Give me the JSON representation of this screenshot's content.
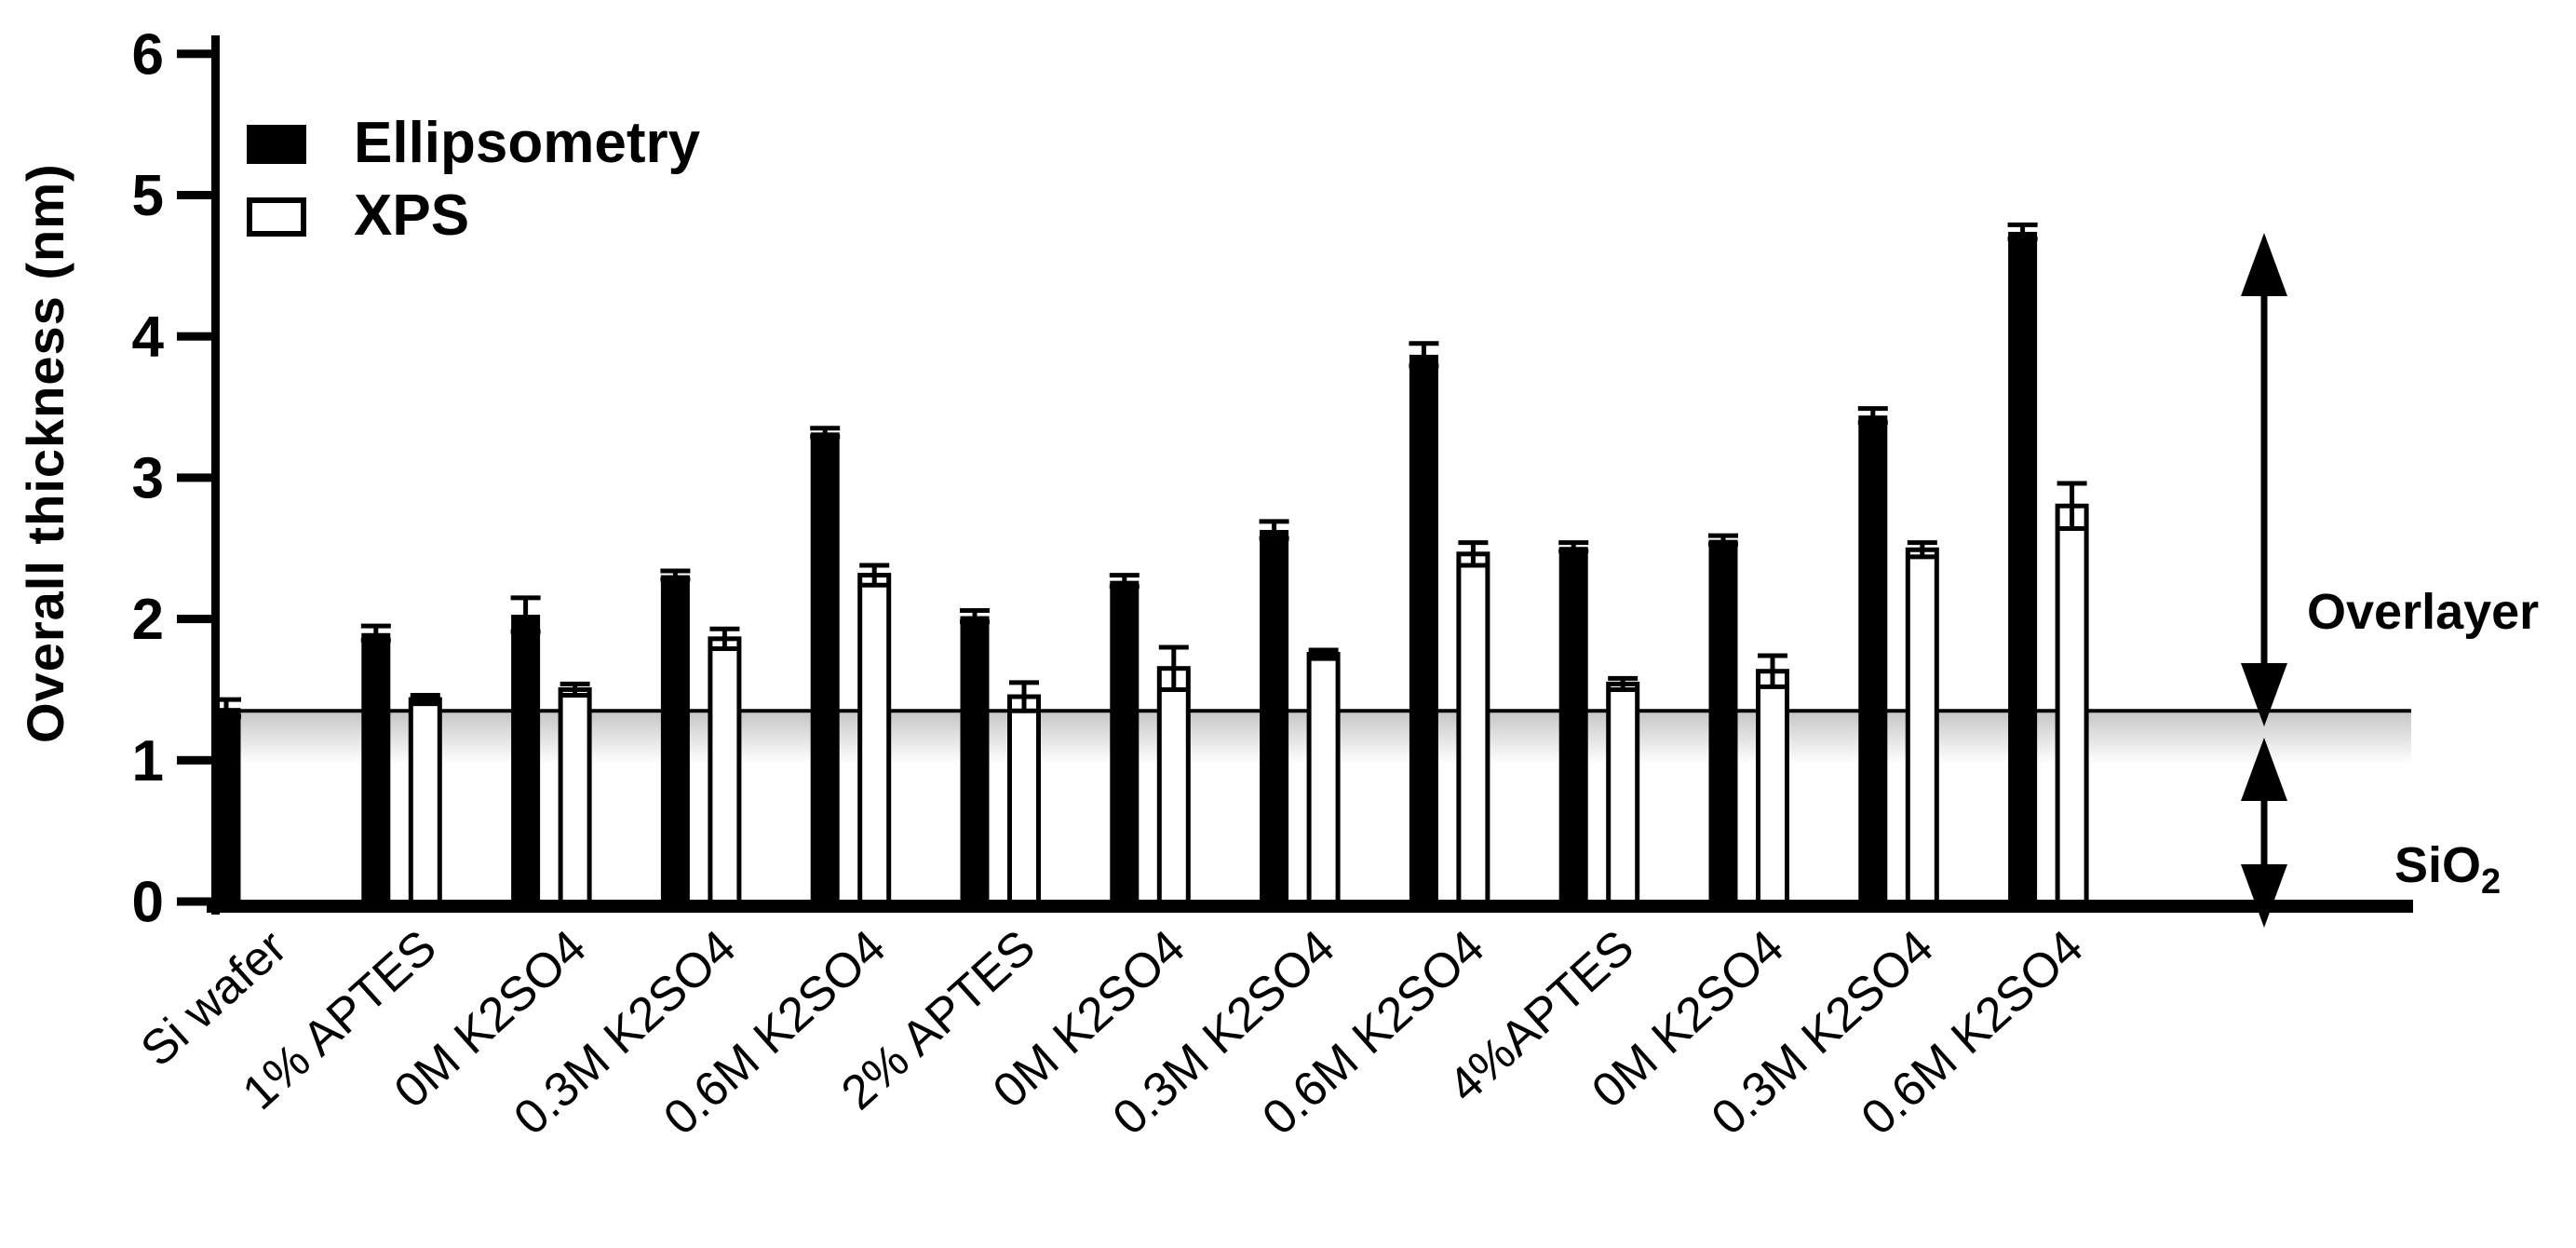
{
  "chart_data": {
    "type": "bar",
    "title": "",
    "ylabel": "Overall thickness (nm)",
    "xlabel": "",
    "ylim": [
      0,
      6
    ],
    "yticks": [
      "0",
      "1",
      "2",
      "3",
      "4",
      "5",
      "6"
    ],
    "grid": false,
    "legend_position": "top-left",
    "categories": [
      "Si wafer",
      "1% APTES",
      "0M K2SO4",
      "0.3M K2SO4",
      "0.6M K2SO4",
      "2% APTES",
      "0M K2SO4",
      "0.3M K2SO4",
      "0.6M K2SO4",
      "4%APTES",
      "0M K2SO4",
      "0.3M K2SO4",
      "0.6M K2SO4"
    ],
    "series": [
      {
        "name": "Ellipsometry",
        "fill": "#000000",
        "values": [
          1.37,
          1.9,
          2.03,
          2.31,
          3.32,
          2.02,
          2.27,
          2.63,
          3.87,
          2.51,
          2.56,
          3.44,
          4.74
        ],
        "errors": [
          0.06,
          0.05,
          0.12,
          0.03,
          0.03,
          0.04,
          0.04,
          0.06,
          0.08,
          0.03,
          0.03,
          0.05,
          0.05
        ]
      },
      {
        "name": "XPS",
        "fill": "#ffffff",
        "values": [
          null,
          1.43,
          1.5,
          1.86,
          2.31,
          1.45,
          1.65,
          1.75,
          2.46,
          1.54,
          1.63,
          2.49,
          2.8
        ],
        "errors": [
          null,
          0.03,
          0.04,
          0.07,
          0.07,
          0.1,
          0.15,
          0.03,
          0.08,
          0.04,
          0.11,
          0.05,
          0.16
        ]
      }
    ],
    "reference_line": {
      "value": 1.35
    },
    "annotations": {
      "overlayer": "Overlayer",
      "sio2_base": "SiO",
      "sio2_sub": "2"
    }
  },
  "colors": {
    "bar_ellipsometry": "#000000",
    "bar_xps_fill": "#ffffff",
    "axis": "#000000",
    "shade_below_line": "rgba(0,0,0,0.22)"
  }
}
